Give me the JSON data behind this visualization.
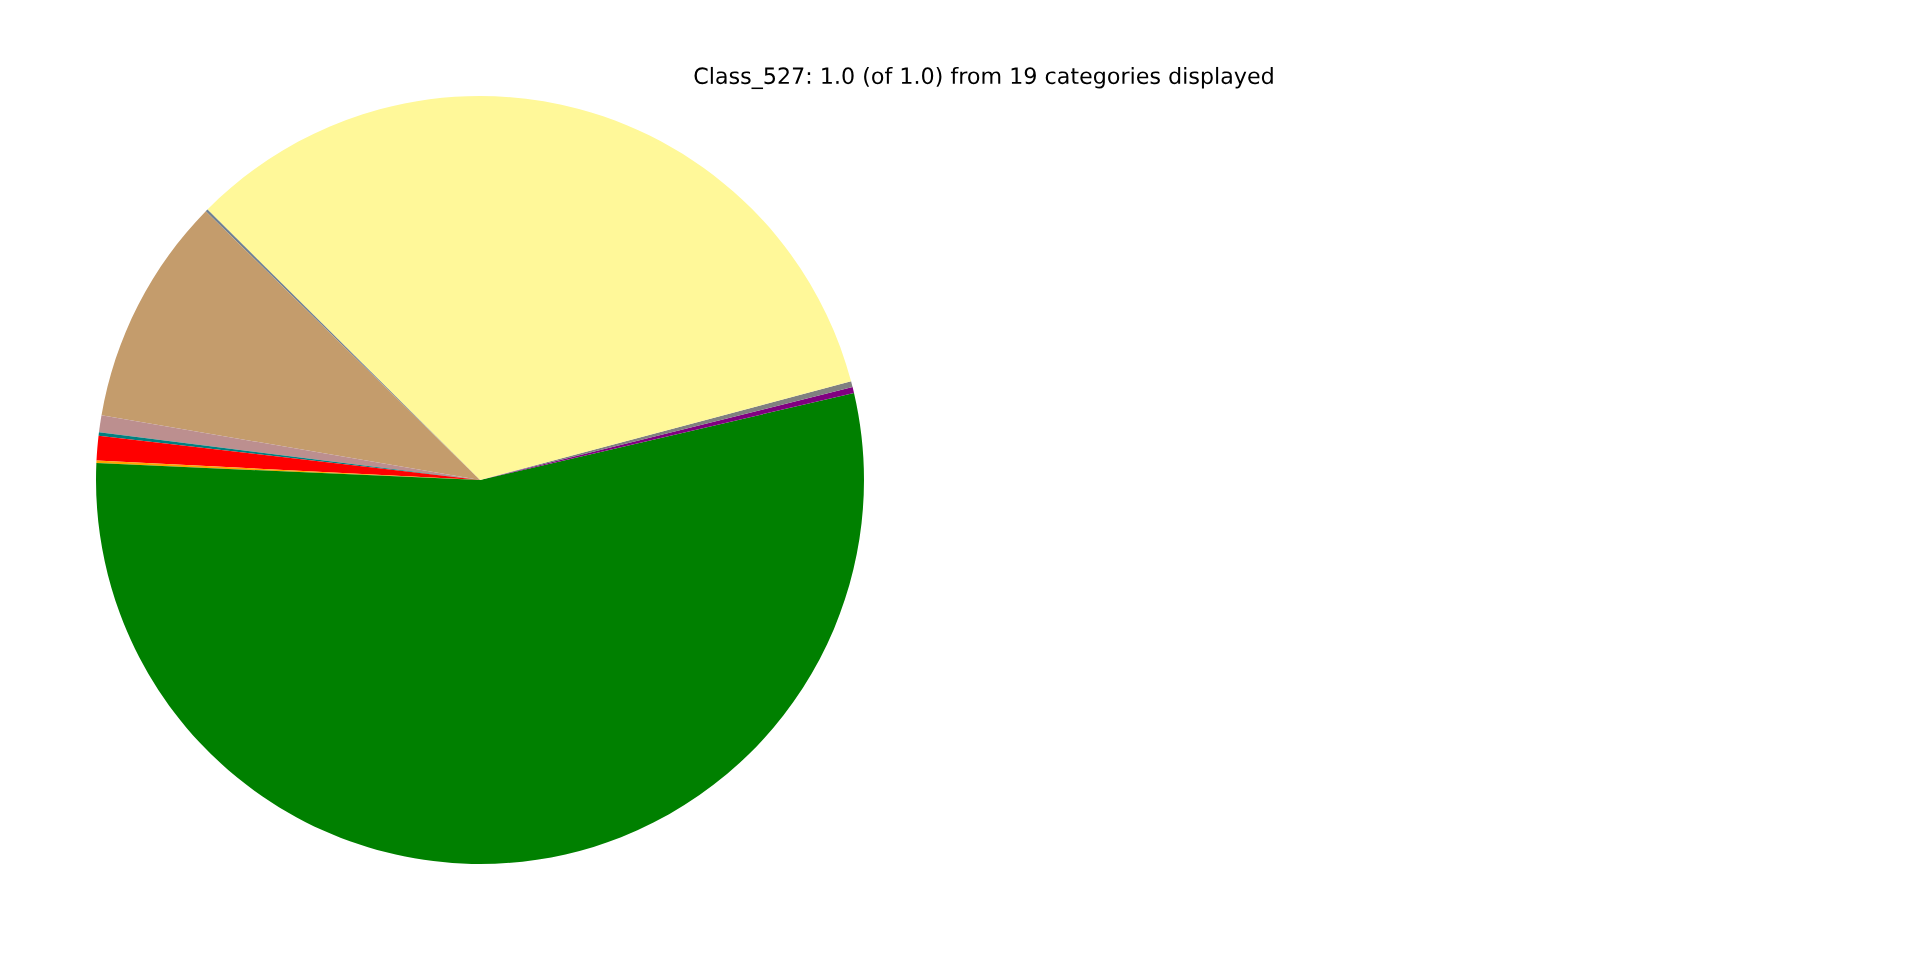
{
  "chart_data": {
    "type": "pie",
    "title": "Class_527: 1.0 (of 1.0) from 19 categories displayed",
    "categories": [
      null,
      null,
      null,
      null,
      null,
      null,
      null,
      null,
      null,
      null,
      null
    ],
    "values": [
      3.64,
      0.25,
      0.25,
      33.42,
      0.1,
      9.64,
      0.72,
      0.14,
      1.03,
      0.11,
      50.7
    ],
    "colors": [
      "#008000",
      "#800080",
      "#808080",
      "#fff899",
      "#708090",
      "#c49c6c",
      "#bc8f8f",
      "#008080",
      "#ff0000",
      "#ffa500",
      "#008000"
    ]
  }
}
